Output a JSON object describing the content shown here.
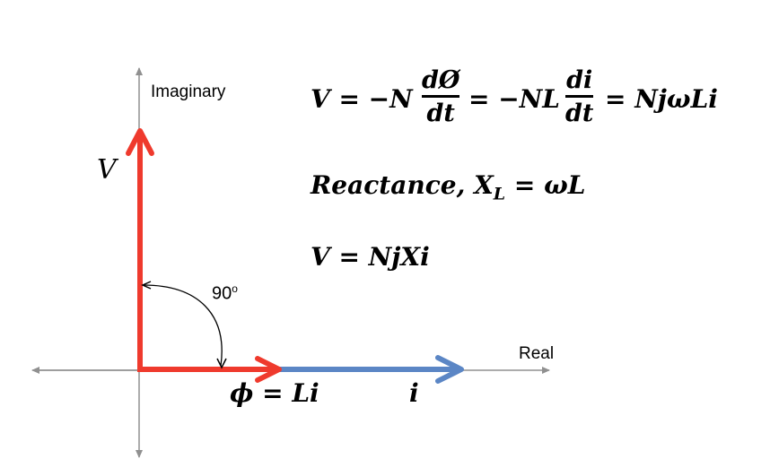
{
  "axes": {
    "imaginary_label": "Imaginary",
    "real_label": "Real"
  },
  "vectors": {
    "v_label": "V",
    "phi_label": "ϕ = Li",
    "i_label": "i",
    "angle_label": "90",
    "angle_unit": "o"
  },
  "equations": {
    "eq1": {
      "lhs": "V = −N",
      "frac1_num": "dØ",
      "frac1_den": "dt",
      "mid": "= −NL",
      "frac2_num": "di",
      "frac2_den": "dt",
      "rhs": "= NjωLi"
    },
    "eq2": {
      "text": "Reactance, X",
      "subscript": "L",
      "rhs": " = ωL"
    },
    "eq3": {
      "text": "V = NjXi"
    }
  },
  "colors": {
    "voltage_vector": "#ef3a2d",
    "flux_vector": "#ef3a2d",
    "current_vector": "#5b86c5",
    "axis": "#909090"
  }
}
